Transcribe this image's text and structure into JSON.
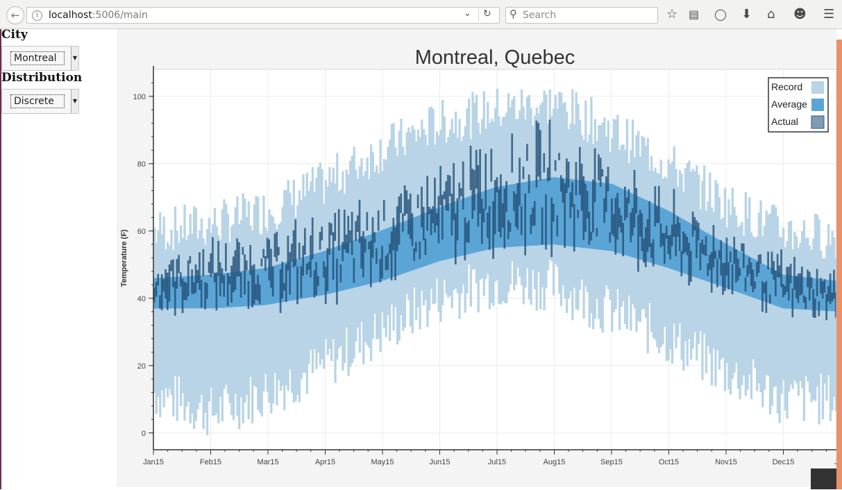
{
  "browser": {
    "url_host": "localhost",
    "url_path": ":5006/main",
    "search_placeholder": "Search"
  },
  "sidebar": {
    "city_label": "City",
    "city_value": "Montreal",
    "distribution_label": "Distribution",
    "distribution_value": "Discrete"
  },
  "colors": {
    "record": "#b8d4e6",
    "average": "#5ba5d6",
    "actual": "#2b5a80",
    "actual_fill": "#1d4a70"
  },
  "chart_data": {
    "type": "bar",
    "title": "Montreal, Quebec",
    "xlabel": "",
    "ylabel": "Temperature (F)",
    "ylim": [
      -5,
      108
    ],
    "xlim": [
      "2015-01-15",
      "2016-01-15"
    ],
    "yticks": [
      0,
      20,
      40,
      60,
      80,
      100
    ],
    "xticks": [
      "Jan15",
      "Feb15",
      "Mar15",
      "Apr15",
      "May15",
      "Jun15",
      "Jul15",
      "Aug15",
      "Sep15",
      "Oct15",
      "Nov15",
      "Dec15",
      "Jan"
    ],
    "grid": true,
    "legend_position": "top-right",
    "legend": [
      "Record",
      "Average",
      "Actual"
    ],
    "series": [
      {
        "name": "Record",
        "x": [
          "2015-01-15",
          "2015-02-15",
          "2015-03-15",
          "2015-04-15",
          "2015-05-15",
          "2015-06-15",
          "2015-07-15",
          "2015-08-15",
          "2015-09-15",
          "2015-10-15",
          "2015-11-15",
          "2015-12-15",
          "2016-01-15"
        ],
        "low": [
          12,
          6,
          12,
          20,
          30,
          40,
          45,
          44,
          36,
          28,
          18,
          10,
          10
        ],
        "high": [
          60,
          62,
          66,
          74,
          84,
          92,
          96,
          98,
          90,
          80,
          68,
          60,
          58
        ]
      },
      {
        "name": "Average",
        "x": [
          "2015-01-15",
          "2015-02-15",
          "2015-03-15",
          "2015-04-15",
          "2015-05-15",
          "2015-06-15",
          "2015-07-15",
          "2015-08-15",
          "2015-09-15",
          "2015-10-15",
          "2015-11-15",
          "2015-12-15",
          "2016-01-15"
        ],
        "low": [
          37,
          37,
          38,
          41,
          45,
          51,
          55,
          56,
          54,
          49,
          43,
          37,
          36
        ],
        "high": [
          46,
          47,
          49,
          54,
          60,
          67,
          73,
          76,
          74,
          66,
          56,
          47,
          45
        ]
      },
      {
        "name": "Actual",
        "x": [
          "2015-01-15",
          "2015-02-15",
          "2015-03-15",
          "2015-04-15",
          "2015-05-15",
          "2015-06-15",
          "2015-07-15",
          "2015-08-15",
          "2015-09-15",
          "2015-10-15",
          "2015-11-15",
          "2015-12-15",
          "2016-01-15"
        ],
        "low": [
          36,
          38,
          38,
          40,
          44,
          50,
          55,
          56,
          52,
          46,
          42,
          35,
          34
        ],
        "high": [
          52,
          56,
          58,
          64,
          70,
          78,
          88,
          90,
          82,
          70,
          60,
          52,
          46
        ]
      }
    ]
  }
}
